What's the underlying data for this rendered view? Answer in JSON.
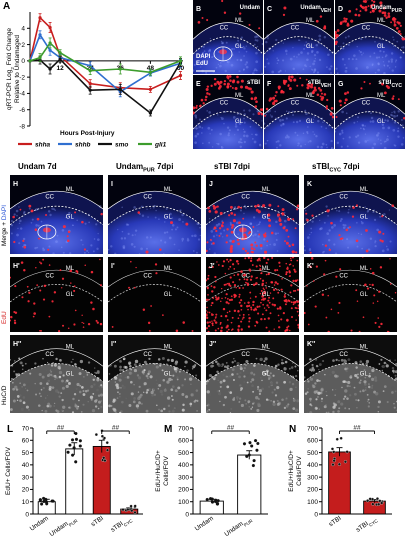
{
  "panelA": {
    "letter": "A",
    "ylabel_line1": "qRT-PCR Log",
    "ylabel_sub": "2",
    "ylabel_rest": " Fold Change",
    "ylabel_line2": "Relative to Undamaged",
    "xlabel": "Hours Post-Injury",
    "legend": [
      {
        "name": "shha",
        "color": "#c81e1e"
      },
      {
        "name": "shhb",
        "color": "#2f6fd0"
      },
      {
        "name": "smo",
        "color": "#111111"
      },
      {
        "name": "gli1",
        "color": "#3c9c2c"
      }
    ]
  },
  "chart_data": [
    {
      "type": "line",
      "x": [
        0,
        4,
        8,
        12,
        24,
        36,
        48,
        60
      ],
      "xticks": [
        12,
        24,
        36,
        48,
        60
      ],
      "yticks": [
        4,
        2,
        0,
        -2,
        -4,
        -6,
        -8
      ],
      "ylim": [
        -8,
        6
      ],
      "xlim": [
        0,
        61
      ],
      "series": [
        {
          "name": "shha",
          "color": "#c81e1e",
          "values": [
            0,
            5.3,
            4.1,
            0.6,
            -2.8,
            -3.3,
            -3.5,
            -1.8
          ]
        },
        {
          "name": "shhb",
          "color": "#2f6fd0",
          "values": [
            0,
            3.2,
            1.3,
            0.4,
            -0.6,
            -3.8,
            -1.5,
            -0.3
          ]
        },
        {
          "name": "smo",
          "color": "#111111",
          "values": [
            0,
            0.1,
            -1.0,
            0.2,
            -3.6,
            -3.5,
            -6.4,
            -0.2
          ]
        },
        {
          "name": "gli1",
          "color": "#3c9c2c",
          "values": [
            0,
            0.4,
            2.2,
            1.0,
            -1.2,
            -1.0,
            -1.4,
            0.0
          ]
        }
      ]
    },
    {
      "type": "bar",
      "panel": "L",
      "ylabel": "EdU+ Cells/FOV",
      "yticks": [
        0,
        10,
        20,
        30,
        40,
        50,
        60,
        70
      ],
      "ylim": [
        0,
        70
      ],
      "categories": [
        "Undam",
        "Undam",
        "sTBI",
        "sTBI"
      ],
      "category_subs": [
        "",
        "PUR",
        "",
        "CYC"
      ],
      "values": [
        10,
        53,
        55,
        4
      ],
      "errors": [
        2,
        5,
        5,
        1
      ],
      "fills": [
        "#ffffff",
        "#ffffff",
        "#c41d1d",
        "#c41d1d"
      ],
      "sig": [
        {
          "from": 0,
          "to": 1,
          "label": "##"
        },
        {
          "from": 2,
          "to": 3,
          "label": "##"
        }
      ]
    },
    {
      "type": "bar",
      "panel": "M",
      "ylabel_line1": "EdU+/HuC/D+",
      "ylabel_line2": "Cells/FOV",
      "yticks": [
        0,
        100,
        200,
        300,
        400,
        500,
        600,
        700
      ],
      "ylim": [
        0,
        700
      ],
      "categories": [
        "Undam",
        "Undam"
      ],
      "category_subs": [
        "",
        "PUR"
      ],
      "values": [
        105,
        480
      ],
      "errors": [
        15,
        35
      ],
      "fills": [
        "#ffffff",
        "#ffffff"
      ],
      "sig": [
        {
          "from": 0,
          "to": 1,
          "label": "##"
        }
      ]
    },
    {
      "type": "bar",
      "panel": "N",
      "ylabel_line1": "EdU+/HuC/D+",
      "ylabel_line2": "Cells/FOV",
      "yticks": [
        0,
        100,
        200,
        300,
        400,
        500,
        600,
        700
      ],
      "ylim": [
        0,
        700
      ],
      "categories": [
        "sTBI",
        "sTBI"
      ],
      "category_subs": [
        "",
        "CYC"
      ],
      "values": [
        505,
        105
      ],
      "errors": [
        35,
        12
      ],
      "fills": [
        "#c41d1d",
        "#c41d1d"
      ],
      "sig": [
        {
          "from": 0,
          "to": 1,
          "label": "##"
        }
      ]
    }
  ],
  "topMicro": [
    {
      "letter": "B",
      "title": "Undam",
      "sub": "",
      "first": true
    },
    {
      "letter": "C",
      "title": "Undam",
      "sub": "VEH",
      "first": false
    },
    {
      "letter": "D",
      "title": "Undam",
      "sub": "PUR",
      "first": false
    },
    {
      "letter": "E",
      "title": "sTBI",
      "sub": "",
      "first": false
    },
    {
      "letter": "F",
      "title": "sTBI",
      "sub": "VEH",
      "first": false
    },
    {
      "letter": "G",
      "title": "sTBI",
      "sub": "CYC",
      "first": false
    }
  ],
  "micro_labels": {
    "cc": "CC",
    "ml": "ML",
    "gl": "GL",
    "dapi": "DAPI",
    "edu": "EdU"
  },
  "gridHeaders": [
    {
      "title": "Undam 7d",
      "sub": "",
      "tail": ""
    },
    {
      "title": "Undam",
      "sub": "PUR",
      "tail": " 7dpi"
    },
    {
      "title": "sTBI 7dpi",
      "sub": "",
      "tail": ""
    },
    {
      "title": "sTBI",
      "sub": "CYC",
      "tail": " 7dpi"
    }
  ],
  "gridRows": [
    {
      "letters": [
        "H",
        "I",
        "J",
        "K"
      ],
      "suffix": "",
      "side1": "Merge + ",
      "side2": "DAPI",
      "side1color": "#000",
      "side2color": "#2b55d6",
      "type": "merge"
    },
    {
      "letters": [
        "H",
        "I",
        "J",
        "K"
      ],
      "suffix": "'",
      "side1": "EdU",
      "side2": "",
      "side1color": "#d42020",
      "side2color": "#000",
      "type": "edu"
    },
    {
      "letters": [
        "H",
        "I",
        "J",
        "K"
      ],
      "suffix": "''",
      "side1": "HuC/D",
      "side2": "",
      "side1color": "#000",
      "side2color": "#000",
      "type": "huc"
    }
  ]
}
